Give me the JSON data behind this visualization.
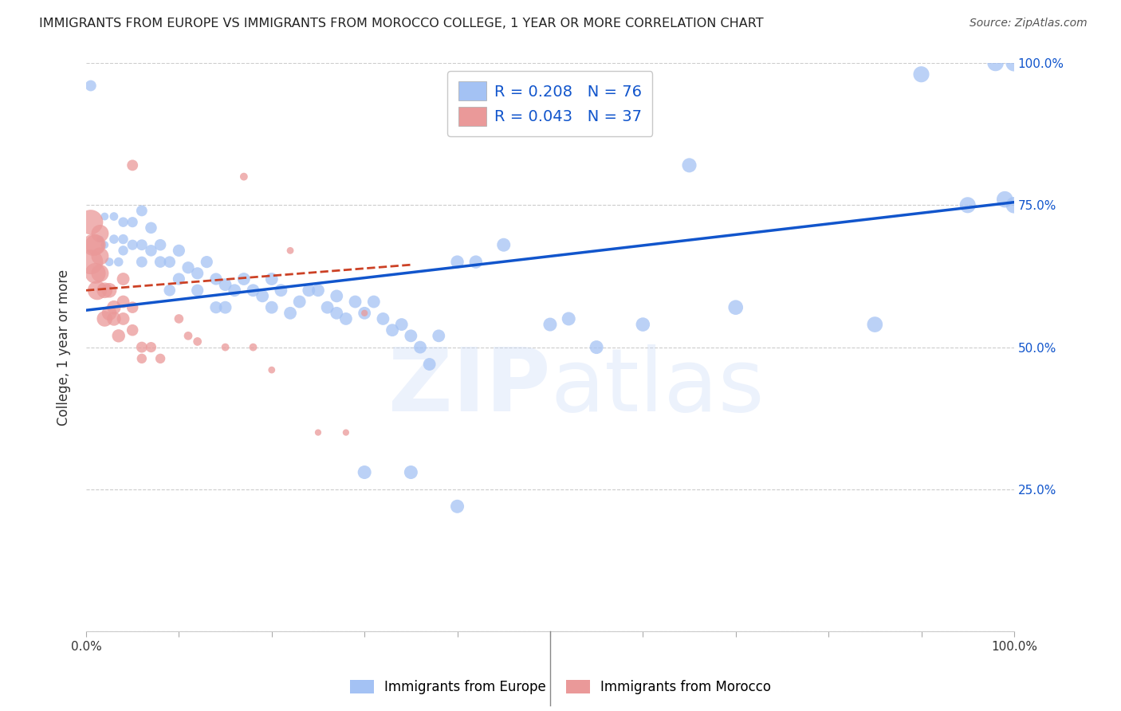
{
  "title": "IMMIGRANTS FROM EUROPE VS IMMIGRANTS FROM MOROCCO COLLEGE, 1 YEAR OR MORE CORRELATION CHART",
  "source": "Source: ZipAtlas.com",
  "ylabel": "College, 1 year or more",
  "xlim": [
    0.0,
    1.0
  ],
  "ylim": [
    0.0,
    1.0
  ],
  "xticks": [
    0.0,
    0.1,
    0.2,
    0.3,
    0.4,
    0.5,
    0.6,
    0.7,
    0.8,
    0.9,
    1.0
  ],
  "ytick_positions": [
    0.0,
    0.25,
    0.5,
    0.75,
    1.0
  ],
  "xtick_labels": [
    "0.0%",
    "",
    "",
    "",
    "",
    "",
    "",
    "",
    "",
    "",
    "100.0%"
  ],
  "right_ytick_labels": [
    "",
    "25.0%",
    "50.0%",
    "75.0%",
    "100.0%"
  ],
  "legend_blue_R": "R = 0.208",
  "legend_blue_N": "N = 76",
  "legend_pink_R": "R = 0.043",
  "legend_pink_N": "N = 37",
  "legend_label_blue": "Immigrants from Europe",
  "legend_label_pink": "Immigrants from Morocco",
  "blue_color": "#a4c2f4",
  "pink_color": "#ea9999",
  "line_blue": "#1155cc",
  "line_pink": "#cc4125",
  "blue_scatter_x": [
    0.005,
    0.015,
    0.02,
    0.02,
    0.025,
    0.03,
    0.03,
    0.035,
    0.04,
    0.04,
    0.04,
    0.05,
    0.05,
    0.06,
    0.06,
    0.06,
    0.07,
    0.07,
    0.08,
    0.08,
    0.09,
    0.09,
    0.1,
    0.1,
    0.11,
    0.12,
    0.12,
    0.13,
    0.14,
    0.14,
    0.15,
    0.15,
    0.16,
    0.17,
    0.18,
    0.19,
    0.2,
    0.2,
    0.21,
    0.22,
    0.23,
    0.24,
    0.25,
    0.26,
    0.27,
    0.27,
    0.28,
    0.29,
    0.3,
    0.31,
    0.32,
    0.33,
    0.34,
    0.35,
    0.36,
    0.37,
    0.38,
    0.4,
    0.42,
    0.45,
    0.5,
    0.52,
    0.55,
    0.6,
    0.65,
    0.7,
    0.85,
    0.9,
    0.95,
    0.98,
    0.99,
    1.0,
    1.0,
    0.3,
    0.35,
    0.4
  ],
  "blue_scatter_y": [
    0.96,
    0.69,
    0.73,
    0.68,
    0.65,
    0.73,
    0.69,
    0.65,
    0.69,
    0.67,
    0.72,
    0.68,
    0.72,
    0.65,
    0.68,
    0.74,
    0.67,
    0.71,
    0.65,
    0.68,
    0.6,
    0.65,
    0.67,
    0.62,
    0.64,
    0.6,
    0.63,
    0.65,
    0.57,
    0.62,
    0.57,
    0.61,
    0.6,
    0.62,
    0.6,
    0.59,
    0.62,
    0.57,
    0.6,
    0.56,
    0.58,
    0.6,
    0.6,
    0.57,
    0.59,
    0.56,
    0.55,
    0.58,
    0.56,
    0.58,
    0.55,
    0.53,
    0.54,
    0.52,
    0.5,
    0.47,
    0.52,
    0.65,
    0.65,
    0.68,
    0.54,
    0.55,
    0.5,
    0.54,
    0.82,
    0.57,
    0.54,
    0.98,
    0.75,
    1.0,
    0.76,
    0.75,
    1.0,
    0.28,
    0.28,
    0.22
  ],
  "blue_scatter_size": [
    100,
    40,
    50,
    50,
    60,
    60,
    70,
    70,
    80,
    80,
    80,
    90,
    90,
    100,
    100,
    100,
    110,
    110,
    110,
    110,
    110,
    110,
    120,
    120,
    120,
    120,
    120,
    120,
    120,
    120,
    130,
    130,
    130,
    130,
    130,
    130,
    130,
    130,
    130,
    130,
    130,
    130,
    130,
    130,
    130,
    130,
    130,
    130,
    130,
    130,
    130,
    130,
    130,
    130,
    130,
    130,
    130,
    140,
    140,
    150,
    150,
    150,
    150,
    160,
    170,
    180,
    200,
    210,
    210,
    220,
    220,
    220,
    230,
    150,
    150,
    150
  ],
  "pink_scatter_x": [
    0.005,
    0.005,
    0.008,
    0.01,
    0.01,
    0.012,
    0.015,
    0.015,
    0.015,
    0.02,
    0.02,
    0.025,
    0.025,
    0.03,
    0.03,
    0.035,
    0.04,
    0.04,
    0.04,
    0.05,
    0.05,
    0.06,
    0.07,
    0.08,
    0.1,
    0.11,
    0.12,
    0.15,
    0.17,
    0.18,
    0.2,
    0.22,
    0.25,
    0.28,
    0.3,
    0.05,
    0.06
  ],
  "pink_scatter_y": [
    0.65,
    0.72,
    0.68,
    0.63,
    0.68,
    0.6,
    0.63,
    0.66,
    0.7,
    0.55,
    0.6,
    0.56,
    0.6,
    0.55,
    0.57,
    0.52,
    0.55,
    0.58,
    0.62,
    0.53,
    0.57,
    0.5,
    0.5,
    0.48,
    0.55,
    0.52,
    0.51,
    0.5,
    0.8,
    0.5,
    0.46,
    0.67,
    0.35,
    0.35,
    0.56,
    0.82,
    0.48
  ],
  "pink_scatter_size": [
    500,
    500,
    400,
    350,
    350,
    300,
    250,
    250,
    250,
    200,
    200,
    180,
    180,
    160,
    160,
    140,
    130,
    130,
    130,
    110,
    110,
    100,
    90,
    80,
    70,
    60,
    60,
    50,
    50,
    50,
    40,
    40,
    35,
    35,
    35,
    100,
    80
  ],
  "blue_line_x": [
    0.0,
    1.0
  ],
  "blue_line_y": [
    0.565,
    0.755
  ],
  "pink_line_x": [
    0.0,
    0.35
  ],
  "pink_line_y": [
    0.6,
    0.645
  ],
  "background_color": "#ffffff",
  "grid_color": "#cccccc",
  "title_color": "#222222",
  "axis_label_color": "#333333",
  "right_tick_color": "#1155cc",
  "watermark_color": "#c9daf8",
  "watermark_alpha": 0.35
}
